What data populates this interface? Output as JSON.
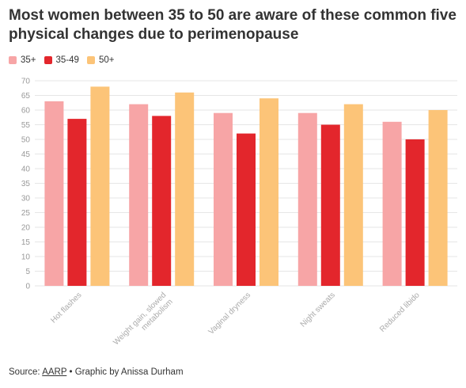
{
  "title": "Most women between 35 to 50 are aware of these common five physical changes due to perimenopause",
  "footer": {
    "source_label": "Source:",
    "source_link": "AARP",
    "credit": "• Graphic by Anissa Durham"
  },
  "colors": {
    "35+": "#F7A5A6",
    "35-49": "#E3262C",
    "50+": "#FCC478"
  },
  "chart_data": {
    "type": "bar",
    "title": "Most women between 35 to 50 are aware of these common five physical changes due to perimenopause",
    "xlabel": "",
    "ylabel": "",
    "ylim": [
      0,
      70
    ],
    "yticks": [
      0,
      5,
      10,
      15,
      20,
      25,
      30,
      35,
      40,
      45,
      50,
      55,
      60,
      65,
      70
    ],
    "grid": true,
    "legend_position": "top-left",
    "categories": [
      "Hot flashes",
      "Weight gain, slowed metabolism",
      "Vaginal dryness",
      "Night sweats",
      "Reduced libido"
    ],
    "series": [
      {
        "name": "35+",
        "color": "#F7A5A6",
        "values": [
          63,
          62,
          59,
          59,
          56
        ]
      },
      {
        "name": "35-49",
        "color": "#E3262C",
        "values": [
          57,
          58,
          52,
          55,
          50
        ]
      },
      {
        "name": "50+",
        "color": "#FCC478",
        "values": [
          68,
          66,
          64,
          62,
          60
        ]
      }
    ]
  }
}
